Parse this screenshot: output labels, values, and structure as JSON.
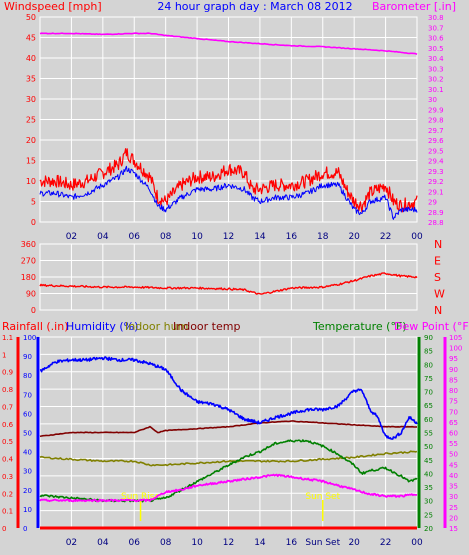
{
  "header": {
    "left_label": "Windspeed [mph]",
    "title": "24 hour graph day : March 08 2012",
    "right_label": "Barometer [.in]"
  },
  "colors": {
    "background": "#d4d4d4",
    "grid": "#ffffff",
    "windspeed": "#ff0000",
    "windgust": "#0000ff",
    "barometer": "#ff00ff",
    "rainfall": "#ff0000",
    "humidity": "#0000ff",
    "indoor_hum": "#808000",
    "indoor_temp": "#800000",
    "temperature": "#008000",
    "dew_point": "#ff00ff",
    "sun_marker": "#ffff00"
  },
  "chart_data": [
    {
      "type": "line",
      "title": "24 hour graph day : March 08 2012",
      "x_tick_labels": [
        "02",
        "04",
        "06",
        "08",
        "10",
        "12",
        "14",
        "16",
        "18",
        "20",
        "22",
        "00"
      ],
      "left_axis": {
        "label": "Windspeed [mph]",
        "ylim": [
          0,
          50
        ],
        "tick_labels": [
          "0",
          "5",
          "10",
          "15",
          "20",
          "25",
          "30",
          "35",
          "40",
          "45",
          "50"
        ]
      },
      "right_axis": {
        "label": "Barometer [.in]",
        "ylim": [
          28.8,
          30.8
        ],
        "tick_labels": [
          "28.8",
          "28.9",
          "29",
          "29.1",
          "29.2",
          "29.3",
          "29.4",
          "29.5",
          "29.6",
          "29.7",
          "29.8",
          "29.9",
          "30",
          "30.1",
          "30.2",
          "30.3",
          "30.4",
          "30.5",
          "30.6",
          "30.7",
          "30.8"
        ]
      },
      "grid": true,
      "series": [
        {
          "name": "Windspeed",
          "axis": "left",
          "color": "#ff0000",
          "x": [
            0,
            1,
            2,
            3,
            4,
            5,
            5.5,
            6,
            7,
            7.5,
            8,
            9,
            10,
            11,
            12,
            13,
            13.5,
            14,
            15,
            16,
            17,
            18,
            19,
            19.5,
            20,
            20.5,
            21,
            22,
            22.5,
            23,
            24
          ],
          "y": [
            10,
            10,
            9,
            10,
            12,
            14,
            17,
            15,
            11,
            6,
            5,
            9,
            11,
            11,
            13,
            12,
            8,
            8,
            9,
            9,
            10,
            12,
            12,
            8,
            5,
            4,
            7,
            9,
            5,
            4,
            5
          ]
        },
        {
          "name": "Wind Gust",
          "axis": "left",
          "color": "#0000ff",
          "x": [
            0,
            1,
            2,
            3,
            4,
            5,
            5.5,
            6,
            7,
            7.5,
            8,
            9,
            10,
            11,
            12,
            13,
            13.5,
            14,
            15,
            16,
            17,
            18,
            19,
            19.5,
            20,
            20.5,
            21,
            22,
            22.5,
            23,
            24
          ],
          "y": [
            7,
            7,
            6,
            7,
            9,
            11,
            13,
            12,
            8,
            4,
            3,
            6,
            8,
            8,
            9,
            8,
            6,
            5,
            6,
            6,
            7,
            9,
            9,
            6,
            3,
            2,
            5,
            6,
            1,
            3,
            3
          ]
        },
        {
          "name": "Barometer",
          "axis": "right",
          "color": "#ff00ff",
          "x": [
            0,
            2,
            4,
            6,
            7,
            8,
            10,
            12,
            14,
            16,
            18,
            20,
            22,
            24
          ],
          "y": [
            30.64,
            30.64,
            30.63,
            30.64,
            30.64,
            30.62,
            30.59,
            30.56,
            30.54,
            30.52,
            30.51,
            30.49,
            30.47,
            30.44
          ]
        }
      ]
    },
    {
      "type": "line",
      "left_axis": {
        "ylim": [
          0,
          360
        ],
        "tick_labels": [
          "0",
          "90",
          "180",
          "270",
          "360"
        ]
      },
      "right_axis": {
        "tick_labels": [
          "N",
          "W",
          "S",
          "E",
          "N"
        ]
      },
      "grid": true,
      "series": [
        {
          "name": "Wind Direction",
          "color": "#ff0000",
          "x": [
            0,
            2,
            4,
            6,
            8,
            10,
            12,
            13,
            14,
            16,
            18,
            19,
            20,
            21,
            22,
            23,
            24
          ],
          "y": [
            135,
            130,
            125,
            125,
            120,
            120,
            115,
            110,
            85,
            120,
            125,
            140,
            160,
            185,
            200,
            185,
            180
          ]
        }
      ]
    },
    {
      "type": "line",
      "x_tick_labels": [
        "02",
        "04",
        "06",
        "08",
        "10",
        "12",
        "14",
        "16",
        "Sun Set",
        "20",
        "22",
        "00"
      ],
      "axes": [
        {
          "label": "Rainfall (.in)",
          "side": "left-outer",
          "color": "#ff0000",
          "ylim": [
            0,
            1.1
          ],
          "tick_labels": [
            "0",
            "0.1",
            "0.2",
            "0.3",
            "0.4",
            "0.5",
            "0.6",
            "0.7",
            "0.8",
            "0.9",
            "1",
            "1.1"
          ]
        },
        {
          "label": "Humidity (%)",
          "side": "left-inner",
          "color": "#0000ff",
          "ylim": [
            0,
            100
          ],
          "tick_labels": [
            "0",
            "10",
            "20",
            "30",
            "40",
            "50",
            "60",
            "70",
            "80",
            "90",
            "100"
          ]
        },
        {
          "label": "Temperature (°F)",
          "side": "right-inner",
          "color": "#008000",
          "ylim": [
            20,
            90
          ],
          "tick_labels": [
            "20",
            "25",
            "30",
            "35",
            "40",
            "45",
            "50",
            "55",
            "60",
            "65",
            "70",
            "75",
            "80",
            "85",
            "90"
          ]
        },
        {
          "label": "Dew Point (°F)",
          "side": "right-outer",
          "color": "#ff00ff",
          "ylim": [
            15,
            105
          ],
          "tick_labels": [
            "15",
            "20",
            "25",
            "30",
            "35",
            "40",
            "45",
            "50",
            "55",
            "60",
            "65",
            "70",
            "75",
            "80",
            "85",
            "90",
            "95",
            "100",
            "105"
          ]
        }
      ],
      "legend": [
        "Rainfall (.in)",
        "Humidity (%)",
        "Indoor hum",
        "Indoor temp",
        "Temperature (°F)",
        "Dew Point (°F)"
      ],
      "grid": true,
      "annotations": [
        {
          "text": "Sun Rise",
          "x": 6.4
        },
        {
          "text": "Sun Set",
          "x": 18
        }
      ],
      "series": [
        {
          "name": "Rainfall",
          "color": "#ff0000",
          "x": [
            0,
            24
          ],
          "y": [
            0,
            0
          ]
        },
        {
          "name": "Humidity",
          "color": "#0000ff",
          "x": [
            0,
            1,
            2,
            3,
            4,
            5,
            6,
            7,
            8,
            9,
            10,
            11,
            12,
            13,
            14,
            15,
            16,
            17,
            18,
            19,
            19.5,
            20,
            20.5,
            21,
            21.5,
            22,
            22.5,
            23,
            23.5,
            24
          ],
          "y": [
            82,
            87,
            88,
            88,
            89,
            88,
            88,
            86,
            83,
            72,
            66,
            65,
            62,
            57,
            55,
            58,
            60,
            62,
            62,
            64,
            68,
            72,
            72,
            62,
            58,
            48,
            47,
            50,
            58,
            55
          ]
        },
        {
          "name": "Indoor hum",
          "color": "#808000",
          "x": [
            0,
            2,
            4,
            6,
            7,
            8,
            10,
            12,
            14,
            16,
            18,
            20,
            22,
            24
          ],
          "y": [
            37,
            36,
            35,
            35,
            33,
            33,
            34,
            35,
            35,
            35,
            36,
            37,
            39,
            40
          ]
        },
        {
          "name": "Indoor temp",
          "color": "#800000",
          "x": [
            0,
            2,
            4,
            6,
            7,
            7.5,
            8,
            10,
            12,
            14,
            16,
            18,
            20,
            22,
            24
          ],
          "y": [
            48,
            50,
            50,
            50,
            53,
            50,
            51,
            52,
            53,
            55,
            56,
            55,
            54,
            53,
            53
          ]
        },
        {
          "name": "Temperature",
          "color": "#008000",
          "x": [
            0,
            2,
            4,
            6,
            7,
            8,
            9,
            10,
            11,
            12,
            13,
            14,
            15,
            16,
            17,
            18,
            19,
            20,
            20.5,
            21,
            22,
            23,
            23.5,
            24
          ],
          "y": [
            32,
            31,
            30,
            30,
            30,
            31,
            34,
            37,
            40,
            43,
            46,
            48,
            51,
            52,
            52,
            50,
            47,
            43,
            40,
            41,
            42,
            39,
            37,
            38
          ]
        },
        {
          "name": "Dew Point",
          "color": "#ff00ff",
          "x": [
            0,
            2,
            4,
            6,
            7,
            7.5,
            8,
            9,
            10,
            11,
            12,
            13,
            14,
            15,
            16,
            17,
            18,
            19,
            20,
            21,
            22,
            23,
            24
          ],
          "y": [
            28,
            28,
            28,
            28,
            28,
            30,
            32,
            33,
            35,
            36,
            37,
            38,
            39,
            40,
            39,
            38,
            37,
            35,
            33,
            31,
            30,
            30,
            31
          ]
        }
      ]
    }
  ]
}
